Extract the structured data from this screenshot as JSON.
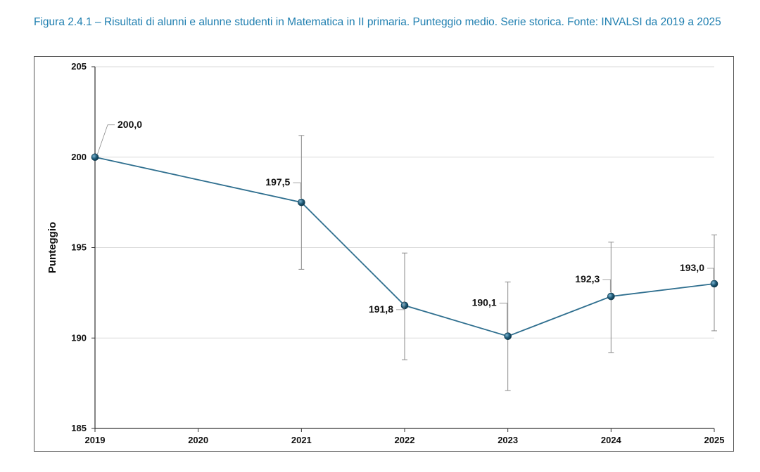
{
  "caption": "Figura 2.4.1 – Risultati di alunni e alunne studenti in Matematica in II primaria. Punteggio medio. Serie storica. Fonte: INVALSI da 2019 a 2025",
  "chart_data": {
    "type": "line",
    "title": "",
    "xlabel": "",
    "ylabel": "Punteggio",
    "x": [
      "2019",
      "2020",
      "2021",
      "2022",
      "2023",
      "2024",
      "2025"
    ],
    "ylim": [
      185,
      205
    ],
    "yticks": [
      185,
      190,
      195,
      200,
      205
    ],
    "grid": true,
    "series": [
      {
        "values": [
          {
            "x": "2019",
            "y": 200.0,
            "label": "200,0"
          },
          {
            "x": "2021",
            "y": 197.5,
            "label": "197,5",
            "err_low": 193.8,
            "err_high": 201.2
          },
          {
            "x": "2022",
            "y": 191.8,
            "label": "191,8",
            "err_low": 188.8,
            "err_high": 194.7
          },
          {
            "x": "2023",
            "y": 190.1,
            "label": "190,1",
            "err_low": 187.1,
            "err_high": 193.1
          },
          {
            "x": "2024",
            "y": 192.3,
            "label": "192,3",
            "err_low": 189.2,
            "err_high": 195.3
          },
          {
            "x": "2025",
            "y": 193.0,
            "label": "193,0",
            "err_low": 190.4,
            "err_high": 195.7
          }
        ]
      }
    ],
    "colors": {
      "line": "#2f6f8f",
      "marker": "#1d5a78",
      "error": "#8a8a8a",
      "grid": "#d9d9d9"
    }
  }
}
